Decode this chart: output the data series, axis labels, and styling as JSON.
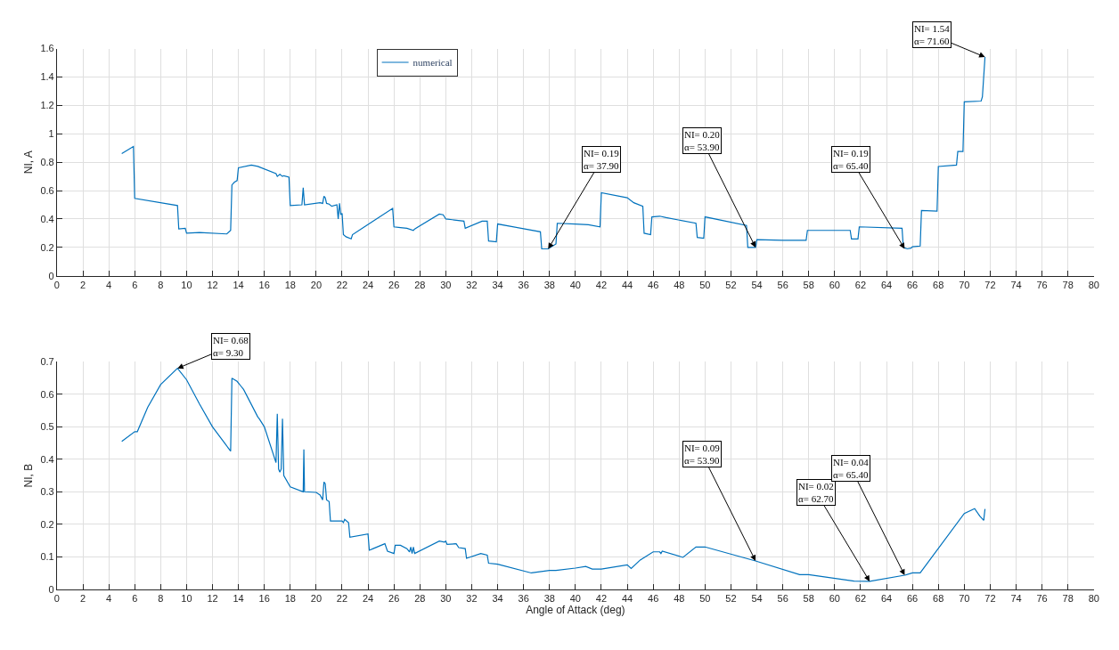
{
  "chart_data": [
    {
      "type": "line",
      "ylabel": "NI, A",
      "xlim": [
        0,
        80
      ],
      "xticks": [
        0,
        2,
        4,
        6,
        8,
        10,
        12,
        14,
        16,
        18,
        20,
        22,
        24,
        26,
        28,
        30,
        32,
        34,
        36,
        38,
        40,
        42,
        44,
        46,
        48,
        50,
        52,
        54,
        56,
        58,
        60,
        62,
        64,
        66,
        68,
        70,
        72,
        74,
        76,
        78,
        80
      ],
      "ylim": [
        0,
        1.6
      ],
      "yticks": [
        0,
        0.2,
        0.4,
        0.6,
        0.8,
        1,
        1.2,
        1.4,
        1.6
      ],
      "grid": true,
      "legend": "top",
      "line_style": "solid",
      "marker": "none",
      "series": [
        {
          "name": "numerical",
          "color": "#0072bd",
          "x": [
            5.0,
            5.9,
            6.0,
            9.3,
            9.4,
            9.9,
            10.0,
            11.0,
            13.1,
            13.4,
            13.5,
            13.7,
            13.9,
            14.0,
            15.0,
            15.5,
            16.9,
            17.0,
            17.2,
            17.4,
            17.5,
            17.9,
            18.0,
            18.9,
            19.0,
            19.1,
            20.3,
            20.5,
            20.6,
            20.7,
            20.8,
            21.0,
            21.2,
            21.6,
            21.7,
            21.8,
            21.9,
            22.0,
            22.1,
            22.3,
            22.7,
            22.8,
            25.9,
            26.0,
            26.5,
            27.0,
            27.5,
            27.6,
            29.5,
            29.8,
            30.0,
            30.5,
            31.4,
            31.5,
            32.8,
            33.2,
            33.3,
            33.9,
            34.0,
            37.3,
            37.4,
            37.9,
            38.5,
            38.6,
            40.0,
            41.0,
            41.9,
            42.0,
            44.0,
            44.5,
            45.2,
            45.3,
            45.8,
            45.9,
            46.5,
            47.0,
            49.3,
            49.4,
            49.9,
            50.0,
            53.2,
            53.3,
            53.9,
            54.0,
            56.0,
            57.8,
            57.9,
            61.2,
            61.3,
            61.8,
            61.9,
            65.2,
            65.3,
            65.6,
            65.9,
            66.0,
            66.6,
            66.7,
            67.9,
            68.0,
            69.4,
            69.5,
            69.9,
            70.0,
            71.3,
            71.4,
            71.6
          ],
          "values": [
            0.86,
            0.91,
            0.545,
            0.495,
            0.33,
            0.335,
            0.3,
            0.305,
            0.295,
            0.32,
            0.64,
            0.66,
            0.67,
            0.76,
            0.78,
            0.77,
            0.72,
            0.7,
            0.715,
            0.7,
            0.705,
            0.695,
            0.495,
            0.5,
            0.62,
            0.5,
            0.515,
            0.51,
            0.56,
            0.55,
            0.51,
            0.505,
            0.49,
            0.5,
            0.4,
            0.51,
            0.43,
            0.44,
            0.29,
            0.275,
            0.26,
            0.29,
            0.475,
            0.345,
            0.34,
            0.335,
            0.32,
            0.33,
            0.435,
            0.43,
            0.4,
            0.395,
            0.385,
            0.335,
            0.385,
            0.385,
            0.245,
            0.24,
            0.365,
            0.31,
            0.19,
            0.19,
            0.225,
            0.37,
            0.365,
            0.36,
            0.345,
            0.585,
            0.55,
            0.515,
            0.49,
            0.3,
            0.29,
            0.415,
            0.42,
            0.41,
            0.37,
            0.27,
            0.265,
            0.415,
            0.355,
            0.2,
            0.2,
            0.255,
            0.25,
            0.25,
            0.32,
            0.32,
            0.26,
            0.26,
            0.345,
            0.335,
            0.2,
            0.19,
            0.195,
            0.205,
            0.21,
            0.46,
            0.455,
            0.77,
            0.78,
            0.875,
            0.875,
            1.225,
            1.23,
            1.26,
            1.54
          ]
        }
      ],
      "annotations": [
        {
          "text": "NI= 0.19\nα= 37.90",
          "x": 37.9,
          "y": 0.19
        },
        {
          "text": "NI= 0.20\nα= 53.90",
          "x": 53.9,
          "y": 0.2
        },
        {
          "text": "NI= 0.19\nα= 65.40",
          "x": 65.4,
          "y": 0.19
        },
        {
          "text": "NI= 1.54\nα= 71.60",
          "x": 71.6,
          "y": 1.54
        }
      ]
    },
    {
      "type": "line",
      "xlabel": "Angle of Attack (deg)",
      "ylabel": "NI, B",
      "xlim": [
        0,
        80
      ],
      "xticks": [
        0,
        2,
        4,
        6,
        8,
        10,
        12,
        14,
        16,
        18,
        20,
        22,
        24,
        26,
        28,
        30,
        32,
        34,
        36,
        38,
        40,
        42,
        44,
        46,
        48,
        50,
        52,
        54,
        56,
        58,
        60,
        62,
        64,
        66,
        68,
        70,
        72,
        74,
        76,
        78,
        80
      ],
      "ylim": [
        0,
        0.7
      ],
      "yticks": [
        0,
        0.1,
        0.2,
        0.3,
        0.4,
        0.5,
        0.6,
        0.7
      ],
      "grid": true,
      "line_style": "solid",
      "marker": "none",
      "series": [
        {
          "color": "#0072bd",
          "x": [
            5.0,
            6.0,
            6.2,
            7.0,
            8.0,
            9.3,
            10.0,
            11.0,
            12.0,
            13.4,
            13.5,
            13.9,
            14.2,
            14.4,
            15.5,
            15.6,
            16.0,
            16.9,
            17.0,
            17.1,
            17.2,
            17.3,
            17.4,
            17.5,
            18.0,
            19.0,
            19.05,
            19.1,
            20.0,
            20.3,
            20.5,
            20.6,
            20.7,
            20.8,
            21.0,
            21.1,
            21.8,
            22.0,
            22.1,
            22.2,
            22.5,
            22.6,
            24.0,
            24.1,
            24.4,
            25.3,
            25.5,
            26.0,
            26.1,
            26.5,
            27.0,
            27.2,
            27.3,
            27.4,
            27.5,
            27.6,
            29.5,
            29.9,
            30.0,
            30.1,
            30.8,
            31.0,
            31.5,
            31.6,
            32.7,
            33.2,
            33.3,
            34.0,
            36.6,
            38.0,
            38.5,
            40.0,
            40.8,
            41.3,
            42.0,
            44.0,
            44.3,
            45.0,
            46.0,
            46.5,
            46.6,
            46.7,
            48.3,
            49.3,
            50.0,
            53.9,
            57.3,
            58.0,
            61.5,
            62.7,
            65.4,
            66.0,
            66.6,
            70.0,
            70.8,
            71.2,
            71.5,
            71.6
          ],
          "values": [
            0.455,
            0.485,
            0.485,
            0.56,
            0.63,
            0.68,
            0.645,
            0.57,
            0.5,
            0.425,
            0.65,
            0.64,
            0.625,
            0.615,
            0.53,
            0.525,
            0.5,
            0.39,
            0.54,
            0.37,
            0.36,
            0.37,
            0.525,
            0.35,
            0.315,
            0.3,
            0.43,
            0.3,
            0.298,
            0.29,
            0.275,
            0.33,
            0.325,
            0.275,
            0.27,
            0.21,
            0.21,
            0.21,
            0.205,
            0.215,
            0.205,
            0.16,
            0.17,
            0.12,
            0.125,
            0.14,
            0.117,
            0.11,
            0.135,
            0.135,
            0.125,
            0.115,
            0.13,
            0.11,
            0.13,
            0.11,
            0.148,
            0.145,
            0.148,
            0.138,
            0.14,
            0.128,
            0.125,
            0.095,
            0.11,
            0.105,
            0.08,
            0.077,
            0.05,
            0.058,
            0.058,
            0.065,
            0.07,
            0.062,
            0.062,
            0.075,
            0.064,
            0.09,
            0.115,
            0.115,
            0.11,
            0.117,
            0.098,
            0.13,
            0.13,
            0.087,
            0.045,
            0.045,
            0.025,
            0.024,
            0.043,
            0.05,
            0.05,
            0.233,
            0.248,
            0.225,
            0.212,
            0.247
          ]
        }
      ],
      "annotations": [
        {
          "text": "NI= 0.68\nα= 9.30",
          "x": 9.3,
          "y": 0.68
        },
        {
          "text": "NI= 0.09\nα= 53.90",
          "x": 53.9,
          "y": 0.087
        },
        {
          "text": "NI= 0.02\nα= 62.70",
          "x": 62.7,
          "y": 0.024
        },
        {
          "text": "NI= 0.04\nα= 65.40",
          "x": 65.4,
          "y": 0.043
        }
      ]
    }
  ]
}
